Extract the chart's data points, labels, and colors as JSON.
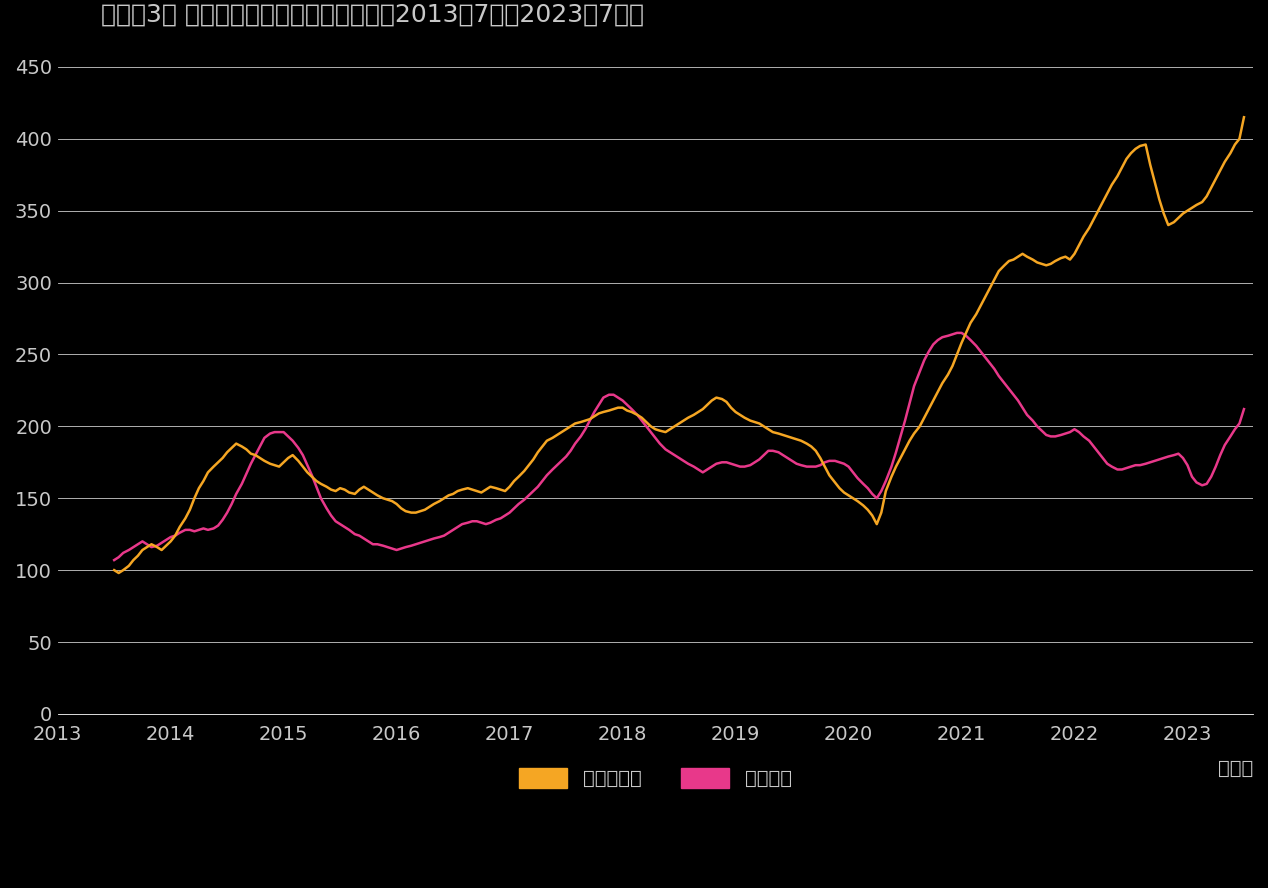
{
  "title": "【図表3】 インド株式と中国株式の推移（2013年7月〜2023年7月）",
  "xlabel_note": "（年）",
  "india_label": "インド株式",
  "china_label": "中国株式",
  "india_color": "#F5A623",
  "china_color": "#E8388A",
  "background_color": "#000000",
  "text_color": "#c8c8c8",
  "grid_color": "#ffffff",
  "ylim": [
    0,
    450
  ],
  "yticks": [
    0,
    50,
    100,
    150,
    200,
    250,
    300,
    350,
    400,
    450
  ],
  "xticks_years": [
    2013,
    2014,
    2015,
    2016,
    2017,
    2018,
    2019,
    2020,
    2021,
    2022,
    2023
  ],
  "india_x": [
    2013.5,
    2013.54,
    2013.58,
    2013.63,
    2013.67,
    2013.71,
    2013.75,
    2013.79,
    2013.83,
    2013.88,
    2013.92,
    2013.96,
    2014.0,
    2014.04,
    2014.08,
    2014.13,
    2014.17,
    2014.21,
    2014.25,
    2014.29,
    2014.33,
    2014.38,
    2014.42,
    2014.46,
    2014.5,
    2014.54,
    2014.58,
    2014.63,
    2014.67,
    2014.71,
    2014.75,
    2014.79,
    2014.83,
    2014.88,
    2014.92,
    2014.96,
    2015.0,
    2015.04,
    2015.08,
    2015.13,
    2015.17,
    2015.21,
    2015.25,
    2015.29,
    2015.33,
    2015.38,
    2015.42,
    2015.46,
    2015.5,
    2015.54,
    2015.58,
    2015.63,
    2015.67,
    2015.71,
    2015.75,
    2015.79,
    2015.83,
    2015.88,
    2015.92,
    2015.96,
    2016.0,
    2016.04,
    2016.08,
    2016.13,
    2016.17,
    2016.21,
    2016.25,
    2016.29,
    2016.33,
    2016.38,
    2016.42,
    2016.46,
    2016.5,
    2016.54,
    2016.58,
    2016.63,
    2016.67,
    2016.71,
    2016.75,
    2016.79,
    2016.83,
    2016.88,
    2016.92,
    2016.96,
    2017.0,
    2017.04,
    2017.08,
    2017.13,
    2017.17,
    2017.21,
    2017.25,
    2017.29,
    2017.33,
    2017.38,
    2017.42,
    2017.46,
    2017.5,
    2017.54,
    2017.58,
    2017.63,
    2017.67,
    2017.71,
    2017.75,
    2017.79,
    2017.83,
    2017.88,
    2017.92,
    2017.96,
    2018.0,
    2018.04,
    2018.08,
    2018.13,
    2018.17,
    2018.21,
    2018.25,
    2018.29,
    2018.33,
    2018.38,
    2018.42,
    2018.46,
    2018.5,
    2018.54,
    2018.58,
    2018.63,
    2018.67,
    2018.71,
    2018.75,
    2018.79,
    2018.83,
    2018.88,
    2018.92,
    2018.96,
    2019.0,
    2019.04,
    2019.08,
    2019.13,
    2019.17,
    2019.21,
    2019.25,
    2019.29,
    2019.33,
    2019.38,
    2019.42,
    2019.46,
    2019.5,
    2019.54,
    2019.58,
    2019.63,
    2019.67,
    2019.71,
    2019.75,
    2019.79,
    2019.83,
    2019.88,
    2019.92,
    2019.96,
    2020.0,
    2020.04,
    2020.08,
    2020.13,
    2020.17,
    2020.21,
    2020.25,
    2020.29,
    2020.33,
    2020.38,
    2020.42,
    2020.46,
    2020.5,
    2020.54,
    2020.58,
    2020.63,
    2020.67,
    2020.71,
    2020.75,
    2020.79,
    2020.83,
    2020.88,
    2020.92,
    2020.96,
    2021.0,
    2021.04,
    2021.08,
    2021.13,
    2021.17,
    2021.21,
    2021.25,
    2021.29,
    2021.33,
    2021.38,
    2021.42,
    2021.46,
    2021.5,
    2021.54,
    2021.58,
    2021.63,
    2021.67,
    2021.71,
    2021.75,
    2021.79,
    2021.83,
    2021.88,
    2021.92,
    2021.96,
    2022.0,
    2022.04,
    2022.08,
    2022.13,
    2022.17,
    2022.21,
    2022.25,
    2022.29,
    2022.33,
    2022.38,
    2022.42,
    2022.46,
    2022.5,
    2022.54,
    2022.58,
    2022.63,
    2022.67,
    2022.71,
    2022.75,
    2022.79,
    2022.83,
    2022.88,
    2022.92,
    2022.96,
    2023.0,
    2023.04,
    2023.08,
    2023.13,
    2023.17,
    2023.21,
    2023.25,
    2023.29,
    2023.33,
    2023.38,
    2023.42,
    2023.46,
    2023.5
  ],
  "india_y": [
    100,
    98,
    100,
    103,
    107,
    110,
    114,
    116,
    118,
    116,
    114,
    117,
    120,
    124,
    130,
    136,
    142,
    150,
    157,
    162,
    168,
    172,
    175,
    178,
    182,
    185,
    188,
    186,
    184,
    181,
    180,
    178,
    176,
    174,
    173,
    172,
    175,
    178,
    180,
    176,
    172,
    168,
    165,
    162,
    160,
    158,
    156,
    155,
    157,
    156,
    154,
    153,
    156,
    158,
    156,
    154,
    152,
    150,
    149,
    148,
    146,
    143,
    141,
    140,
    140,
    141,
    142,
    144,
    146,
    148,
    150,
    152,
    153,
    155,
    156,
    157,
    156,
    155,
    154,
    156,
    158,
    157,
    156,
    155,
    158,
    162,
    165,
    169,
    173,
    177,
    182,
    186,
    190,
    192,
    194,
    196,
    198,
    200,
    202,
    203,
    204,
    205,
    207,
    209,
    210,
    211,
    212,
    213,
    213,
    211,
    210,
    208,
    206,
    203,
    200,
    198,
    197,
    196,
    198,
    200,
    202,
    204,
    206,
    208,
    210,
    212,
    215,
    218,
    220,
    219,
    217,
    213,
    210,
    208,
    206,
    204,
    203,
    202,
    200,
    198,
    196,
    195,
    194,
    193,
    192,
    191,
    190,
    188,
    186,
    183,
    178,
    172,
    166,
    161,
    157,
    154,
    152,
    150,
    148,
    145,
    142,
    138,
    132,
    140,
    155,
    165,
    172,
    178,
    184,
    190,
    195,
    200,
    206,
    212,
    218,
    224,
    230,
    236,
    242,
    250,
    258,
    265,
    272,
    278,
    284,
    290,
    296,
    302,
    308,
    312,
    315,
    316,
    318,
    320,
    318,
    316,
    314,
    313,
    312,
    313,
    315,
    317,
    318,
    316,
    320,
    326,
    332,
    338,
    344,
    350,
    356,
    362,
    368,
    374,
    380,
    386,
    390,
    393,
    395,
    396,
    382,
    370,
    358,
    348,
    340,
    342,
    345,
    348,
    350,
    352,
    354,
    356,
    360,
    366,
    372,
    378,
    384,
    390,
    396,
    400,
    415
  ],
  "china_x": [
    2013.5,
    2013.54,
    2013.58,
    2013.63,
    2013.67,
    2013.71,
    2013.75,
    2013.79,
    2013.83,
    2013.88,
    2013.92,
    2013.96,
    2014.0,
    2014.04,
    2014.08,
    2014.13,
    2014.17,
    2014.21,
    2014.25,
    2014.29,
    2014.33,
    2014.38,
    2014.42,
    2014.46,
    2014.5,
    2014.54,
    2014.58,
    2014.63,
    2014.67,
    2014.71,
    2014.75,
    2014.79,
    2014.83,
    2014.88,
    2014.92,
    2014.96,
    2015.0,
    2015.04,
    2015.08,
    2015.13,
    2015.17,
    2015.21,
    2015.25,
    2015.29,
    2015.33,
    2015.38,
    2015.42,
    2015.46,
    2015.5,
    2015.54,
    2015.58,
    2015.63,
    2015.67,
    2015.71,
    2015.75,
    2015.79,
    2015.83,
    2015.88,
    2015.92,
    2015.96,
    2016.0,
    2016.04,
    2016.08,
    2016.13,
    2016.17,
    2016.21,
    2016.25,
    2016.29,
    2016.33,
    2016.38,
    2016.42,
    2016.46,
    2016.5,
    2016.54,
    2016.58,
    2016.63,
    2016.67,
    2016.71,
    2016.75,
    2016.79,
    2016.83,
    2016.88,
    2016.92,
    2016.96,
    2017.0,
    2017.04,
    2017.08,
    2017.13,
    2017.17,
    2017.21,
    2017.25,
    2017.29,
    2017.33,
    2017.38,
    2017.42,
    2017.46,
    2017.5,
    2017.54,
    2017.58,
    2017.63,
    2017.67,
    2017.71,
    2017.75,
    2017.79,
    2017.83,
    2017.88,
    2017.92,
    2017.96,
    2018.0,
    2018.04,
    2018.08,
    2018.13,
    2018.17,
    2018.21,
    2018.25,
    2018.29,
    2018.33,
    2018.38,
    2018.42,
    2018.46,
    2018.5,
    2018.54,
    2018.58,
    2018.63,
    2018.67,
    2018.71,
    2018.75,
    2018.79,
    2018.83,
    2018.88,
    2018.92,
    2018.96,
    2019.0,
    2019.04,
    2019.08,
    2019.13,
    2019.17,
    2019.21,
    2019.25,
    2019.29,
    2019.33,
    2019.38,
    2019.42,
    2019.46,
    2019.5,
    2019.54,
    2019.58,
    2019.63,
    2019.67,
    2019.71,
    2019.75,
    2019.79,
    2019.83,
    2019.88,
    2019.92,
    2019.96,
    2020.0,
    2020.04,
    2020.08,
    2020.13,
    2020.17,
    2020.21,
    2020.25,
    2020.29,
    2020.33,
    2020.38,
    2020.42,
    2020.46,
    2020.5,
    2020.54,
    2020.58,
    2020.63,
    2020.67,
    2020.71,
    2020.75,
    2020.79,
    2020.83,
    2020.88,
    2020.92,
    2020.96,
    2021.0,
    2021.04,
    2021.08,
    2021.13,
    2021.17,
    2021.21,
    2021.25,
    2021.29,
    2021.33,
    2021.38,
    2021.42,
    2021.46,
    2021.5,
    2021.54,
    2021.58,
    2021.63,
    2021.67,
    2021.71,
    2021.75,
    2021.79,
    2021.83,
    2021.88,
    2021.92,
    2021.96,
    2022.0,
    2022.04,
    2022.08,
    2022.13,
    2022.17,
    2022.21,
    2022.25,
    2022.29,
    2022.33,
    2022.38,
    2022.42,
    2022.46,
    2022.5,
    2022.54,
    2022.58,
    2022.63,
    2022.67,
    2022.71,
    2022.75,
    2022.79,
    2022.83,
    2022.88,
    2022.92,
    2022.96,
    2023.0,
    2023.04,
    2023.08,
    2023.13,
    2023.17,
    2023.21,
    2023.25,
    2023.29,
    2023.33,
    2023.38,
    2023.42,
    2023.46,
    2023.5
  ],
  "china_y": [
    107,
    109,
    112,
    114,
    116,
    118,
    120,
    118,
    116,
    117,
    119,
    121,
    123,
    124,
    126,
    128,
    128,
    127,
    128,
    129,
    128,
    129,
    131,
    135,
    140,
    146,
    153,
    160,
    167,
    174,
    180,
    186,
    192,
    195,
    196,
    196,
    196,
    193,
    190,
    185,
    180,
    173,
    166,
    158,
    150,
    143,
    138,
    134,
    132,
    130,
    128,
    125,
    124,
    122,
    120,
    118,
    118,
    117,
    116,
    115,
    114,
    115,
    116,
    117,
    118,
    119,
    120,
    121,
    122,
    123,
    124,
    126,
    128,
    130,
    132,
    133,
    134,
    134,
    133,
    132,
    133,
    135,
    136,
    138,
    140,
    143,
    146,
    149,
    152,
    155,
    158,
    162,
    166,
    170,
    173,
    176,
    179,
    183,
    188,
    193,
    198,
    204,
    210,
    215,
    220,
    222,
    222,
    220,
    218,
    215,
    212,
    208,
    204,
    200,
    196,
    192,
    188,
    184,
    182,
    180,
    178,
    176,
    174,
    172,
    170,
    168,
    170,
    172,
    174,
    175,
    175,
    174,
    173,
    172,
    172,
    173,
    175,
    177,
    180,
    183,
    183,
    182,
    180,
    178,
    176,
    174,
    173,
    172,
    172,
    172,
    173,
    175,
    176,
    176,
    175,
    174,
    172,
    168,
    164,
    160,
    157,
    153,
    150,
    155,
    162,
    172,
    182,
    193,
    204,
    216,
    228,
    238,
    246,
    252,
    257,
    260,
    262,
    263,
    264,
    265,
    265,
    263,
    260,
    256,
    252,
    248,
    244,
    240,
    235,
    230,
    226,
    222,
    218,
    213,
    208,
    204,
    200,
    197,
    194,
    193,
    193,
    194,
    195,
    196,
    198,
    196,
    193,
    190,
    186,
    182,
    178,
    174,
    172,
    170,
    170,
    171,
    172,
    173,
    173,
    174,
    175,
    176,
    177,
    178,
    179,
    180,
    181,
    178,
    173,
    165,
    161,
    159,
    160,
    165,
    172,
    180,
    187,
    193,
    198,
    202,
    212
  ],
  "line_width": 1.8,
  "legend_fontsize": 14,
  "title_fontsize": 18,
  "tick_fontsize": 14
}
